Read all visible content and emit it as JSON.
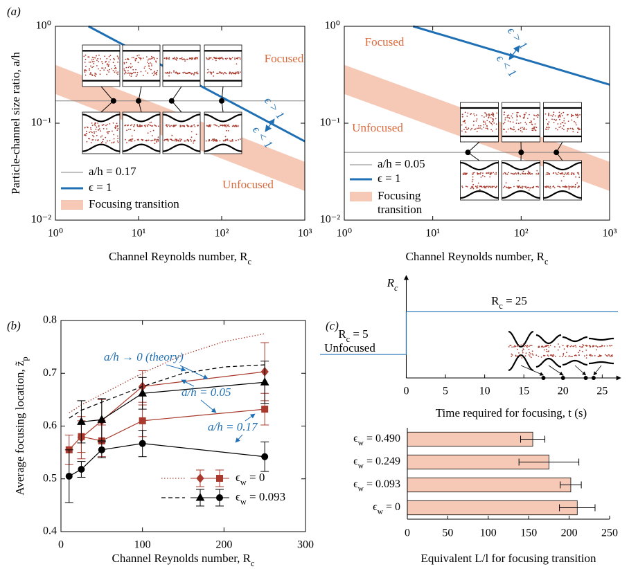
{
  "panel_labels": [
    "(a)",
    "(b)",
    "(c)"
  ],
  "chart_data": [
    {
      "type": "line",
      "x_label": "Channel Reynolds number, Rc",
      "y_label": "Particle-channel size ratio, a/h",
      "log_x": true,
      "log_y": true,
      "xlim": [
        1,
        1000
      ],
      "ylim": [
        0.01,
        1
      ],
      "xticks": [
        {
          "value": 1,
          "label": "10⁰"
        },
        {
          "value": 10,
          "label": "10¹"
        },
        {
          "value": 100,
          "label": "10²"
        },
        {
          "value": 1000,
          "label": "10³"
        }
      ],
      "yticks": [
        {
          "value": 0.01,
          "label": "10⁻²"
        },
        {
          "value": 0.1,
          "label": "10⁻¹"
        },
        {
          "value": 1,
          "label": "10⁰"
        }
      ],
      "band": {
        "name": "Focusing transition",
        "color": "#f6c9b7",
        "x": [
          1,
          1000
        ],
        "upper": [
          0.4,
          0.04
        ],
        "lower": [
          0.2,
          0.02
        ]
      },
      "series": [
        {
          "name": "a/h = 0.17",
          "color": "#808080",
          "x": [
            1,
            1000
          ],
          "values": [
            0.17,
            0.17
          ]
        },
        {
          "name": "ϵ = 1",
          "color": "#1f6fb4",
          "x": [
            2.5,
            1000
          ],
          "values": [
            1,
            0.065
          ]
        }
      ],
      "inset_points": {
        "x": [
          5,
          10,
          25,
          100
        ],
        "values": [
          0.17,
          0.17,
          0.17,
          0.17
        ]
      },
      "annotations": [
        "Focused",
        "Unfocused",
        "ϵ > 1",
        "ϵ < 1"
      ]
    },
    {
      "type": "line",
      "x_label": "Channel Reynolds number, Rc",
      "log_x": true,
      "log_y": true,
      "xlim": [
        1,
        1000
      ],
      "ylim": [
        0.01,
        1
      ],
      "xticks": [
        {
          "value": 1,
          "label": "10⁰"
        },
        {
          "value": 10,
          "label": "10¹"
        },
        {
          "value": 100,
          "label": "10²"
        },
        {
          "value": 1000,
          "label": "10³"
        }
      ],
      "yticks": [
        {
          "value": 0.01,
          "label": "10⁻²"
        },
        {
          "value": 0.1,
          "label": "10⁻¹"
        },
        {
          "value": 1,
          "label": "10⁰"
        }
      ],
      "band": {
        "name": "Focusing transition",
        "color": "#f6c9b7",
        "x": [
          1,
          1000
        ],
        "upper": [
          0.4,
          0.04
        ],
        "lower": [
          0.2,
          0.02
        ]
      },
      "series": [
        {
          "name": "a/h = 0.05",
          "color": "#808080",
          "x": [
            1,
            1000
          ],
          "values": [
            0.05,
            0.05
          ]
        },
        {
          "name": "ϵ = 1",
          "color": "#1f6fb4",
          "x": [
            6,
            1000
          ],
          "values": [
            1,
            0.25
          ]
        }
      ],
      "inset_points": {
        "x": [
          25,
          100,
          250
        ],
        "values": [
          0.05,
          0.05,
          0.05
        ]
      },
      "annotations": [
        "Focused",
        "Unfocused",
        "ϵ > 1",
        "ϵ < 1"
      ]
    },
    {
      "type": "errorbar",
      "x_label": "Channel Reynolds number, Rc",
      "y_label": "Average focusing location, z̃p",
      "xlim": [
        0,
        300
      ],
      "ylim": [
        0.4,
        0.8
      ],
      "xticks": [
        0,
        100,
        200,
        300
      ],
      "yticks": [
        0.4,
        0.5,
        0.6,
        0.7,
        0.8
      ],
      "groups": [
        {
          "name": "ϵw = 0",
          "color": "#a8392c",
          "theory": {
            "dash": "dotted",
            "x": [
              10,
              25,
              50,
              100,
              150,
              200,
              250
            ],
            "values": [
              0.625,
              0.64,
              0.66,
              0.7,
              0.735,
              0.76,
              0.775
            ]
          },
          "series": [
            {
              "marker": "diamond",
              "x": [
                25,
                50,
                100,
                250
              ],
              "values": [
                0.578,
                0.61,
                0.675,
                0.703
              ],
              "errors": [
                0.04,
                0.04,
                0.03,
                0.055
              ]
            },
            {
              "marker": "square",
              "x": [
                10,
                25,
                50,
                100,
                250
              ],
              "values": [
                0.555,
                0.58,
                0.572,
                0.61,
                0.632
              ],
              "errors": [
                0.028,
                0.03,
                0.03,
                0.03,
                0.03
              ]
            }
          ]
        },
        {
          "name": "ϵw = 0.093",
          "color": "#000000",
          "theory": {
            "dash": "dashed",
            "x": [
              10,
              25,
              50,
              100,
              150,
              200,
              250
            ],
            "values": [
              0.615,
              0.63,
              0.645,
              0.675,
              0.7,
              0.712,
              0.716
            ]
          },
          "series": [
            {
              "marker": "triangle",
              "x": [
                25,
                50,
                100,
                250
              ],
              "values": [
                0.608,
                0.612,
                0.662,
                0.683
              ],
              "errors": [
                0.04,
                0.04,
                0.03,
                0.04
              ]
            },
            {
              "marker": "circle",
              "x": [
                10,
                25,
                50,
                100,
                250
              ],
              "values": [
                0.505,
                0.518,
                0.555,
                0.567,
                0.542
              ],
              "errors": [
                0.05,
                0.015,
                0.015,
                0.025,
                0.028
              ]
            }
          ]
        }
      ],
      "annotations": [
        "a/h → 0 (theory)",
        "a/h = 0.05",
        "a/h = 0.17"
      ]
    },
    {
      "type": "step",
      "x_label": "Time required for focusing, t (s)",
      "y_label": "Rc",
      "xlim": [
        -11,
        27
      ],
      "ylim": [
        -6,
        42
      ],
      "xticks": [
        0,
        5,
        10,
        15,
        20,
        25
      ],
      "color": "#1f6fb4",
      "x": [
        -11,
        0,
        0,
        27
      ],
      "values": [
        5,
        5,
        25,
        25
      ],
      "marker_times": [
        17.5,
        20,
        22.9,
        23.9
      ],
      "annotations": [
        "Rc = 25",
        "Rc = 5",
        "Unfocused"
      ]
    },
    {
      "type": "hbar",
      "x_label": "Equivalent L/l for focusing transition",
      "categories": [
        "ϵw = 0.490",
        "ϵw = 0.249",
        "ϵw = 0.093",
        "ϵw = 0"
      ],
      "values": [
        155,
        175,
        202,
        210
      ],
      "errors": [
        15,
        37,
        13,
        22
      ],
      "color": "#f6c9b7",
      "xlim": [
        0,
        250
      ],
      "xticks": [
        0,
        50,
        100,
        150,
        200,
        250
      ]
    }
  ]
}
